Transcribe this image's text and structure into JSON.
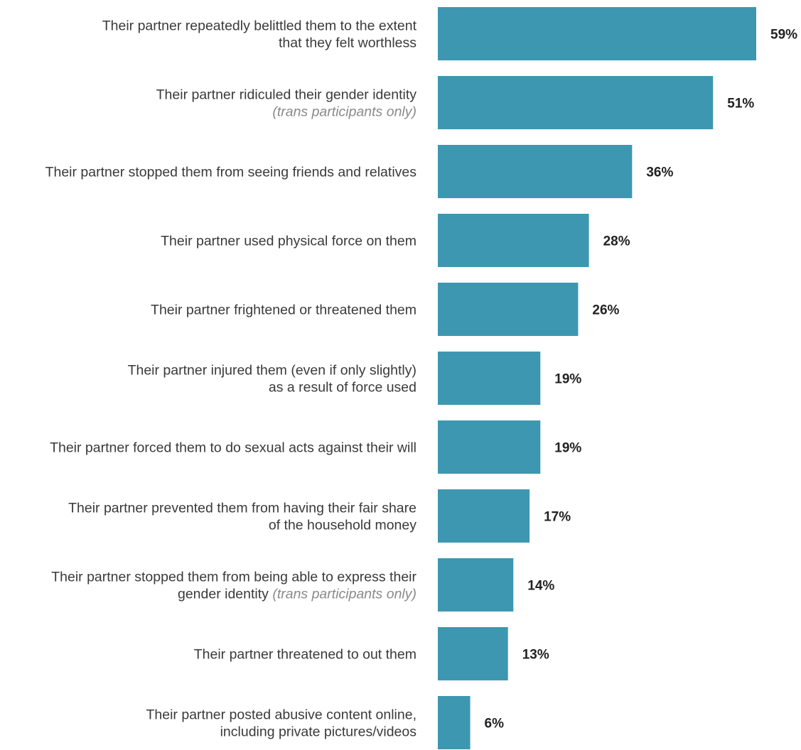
{
  "chart_data": {
    "type": "bar",
    "orientation": "horizontal",
    "bar_color": "#3d97b0",
    "value_suffix": "%",
    "xlim": [
      0,
      59
    ],
    "grid": false,
    "categories": [
      {
        "lines": [
          [
            {
              "text": "Their partner repeatedly belittled them to the extent"
            }
          ],
          [
            {
              "text": "that they felt worthless"
            }
          ]
        ]
      },
      {
        "lines": [
          [
            {
              "text": "Their partner ridiculed their gender identity"
            }
          ],
          [
            {
              "text": "(trans participants only)",
              "note": true
            }
          ]
        ]
      },
      {
        "lines": [
          [
            {
              "text": "Their partner stopped them from seeing friends and relatives"
            }
          ]
        ]
      },
      {
        "lines": [
          [
            {
              "text": "Their partner used physical force on them"
            }
          ]
        ]
      },
      {
        "lines": [
          [
            {
              "text": "Their partner frightened or threatened them"
            }
          ]
        ]
      },
      {
        "lines": [
          [
            {
              "text": "Their partner injured them (even if only slightly)"
            }
          ],
          [
            {
              "text": "as a result of force used"
            }
          ]
        ]
      },
      {
        "lines": [
          [
            {
              "text": "Their partner forced them to do sexual acts against their will"
            }
          ]
        ]
      },
      {
        "lines": [
          [
            {
              "text": "Their partner prevented them from having their fair share"
            }
          ],
          [
            {
              "text": "of the household money"
            }
          ]
        ]
      },
      {
        "lines": [
          [
            {
              "text": "Their partner stopped them from being able to express their"
            }
          ],
          [
            {
              "text": "gender identity "
            },
            {
              "text": "(trans participants only)",
              "note": true
            }
          ]
        ]
      },
      {
        "lines": [
          [
            {
              "text": "Their partner threatened to out them"
            }
          ]
        ]
      },
      {
        "lines": [
          [
            {
              "text": "Their partner posted abusive content online,"
            }
          ],
          [
            {
              "text": "including private pictures/videos"
            }
          ]
        ]
      }
    ],
    "values": [
      59,
      51,
      36,
      28,
      26,
      19,
      19,
      17,
      14,
      13,
      6
    ],
    "value_labels": [
      "59%",
      "51%",
      "36%",
      "28%",
      "26%",
      "19%",
      "19%",
      "17%",
      "14%",
      "13%",
      "6%"
    ]
  }
}
